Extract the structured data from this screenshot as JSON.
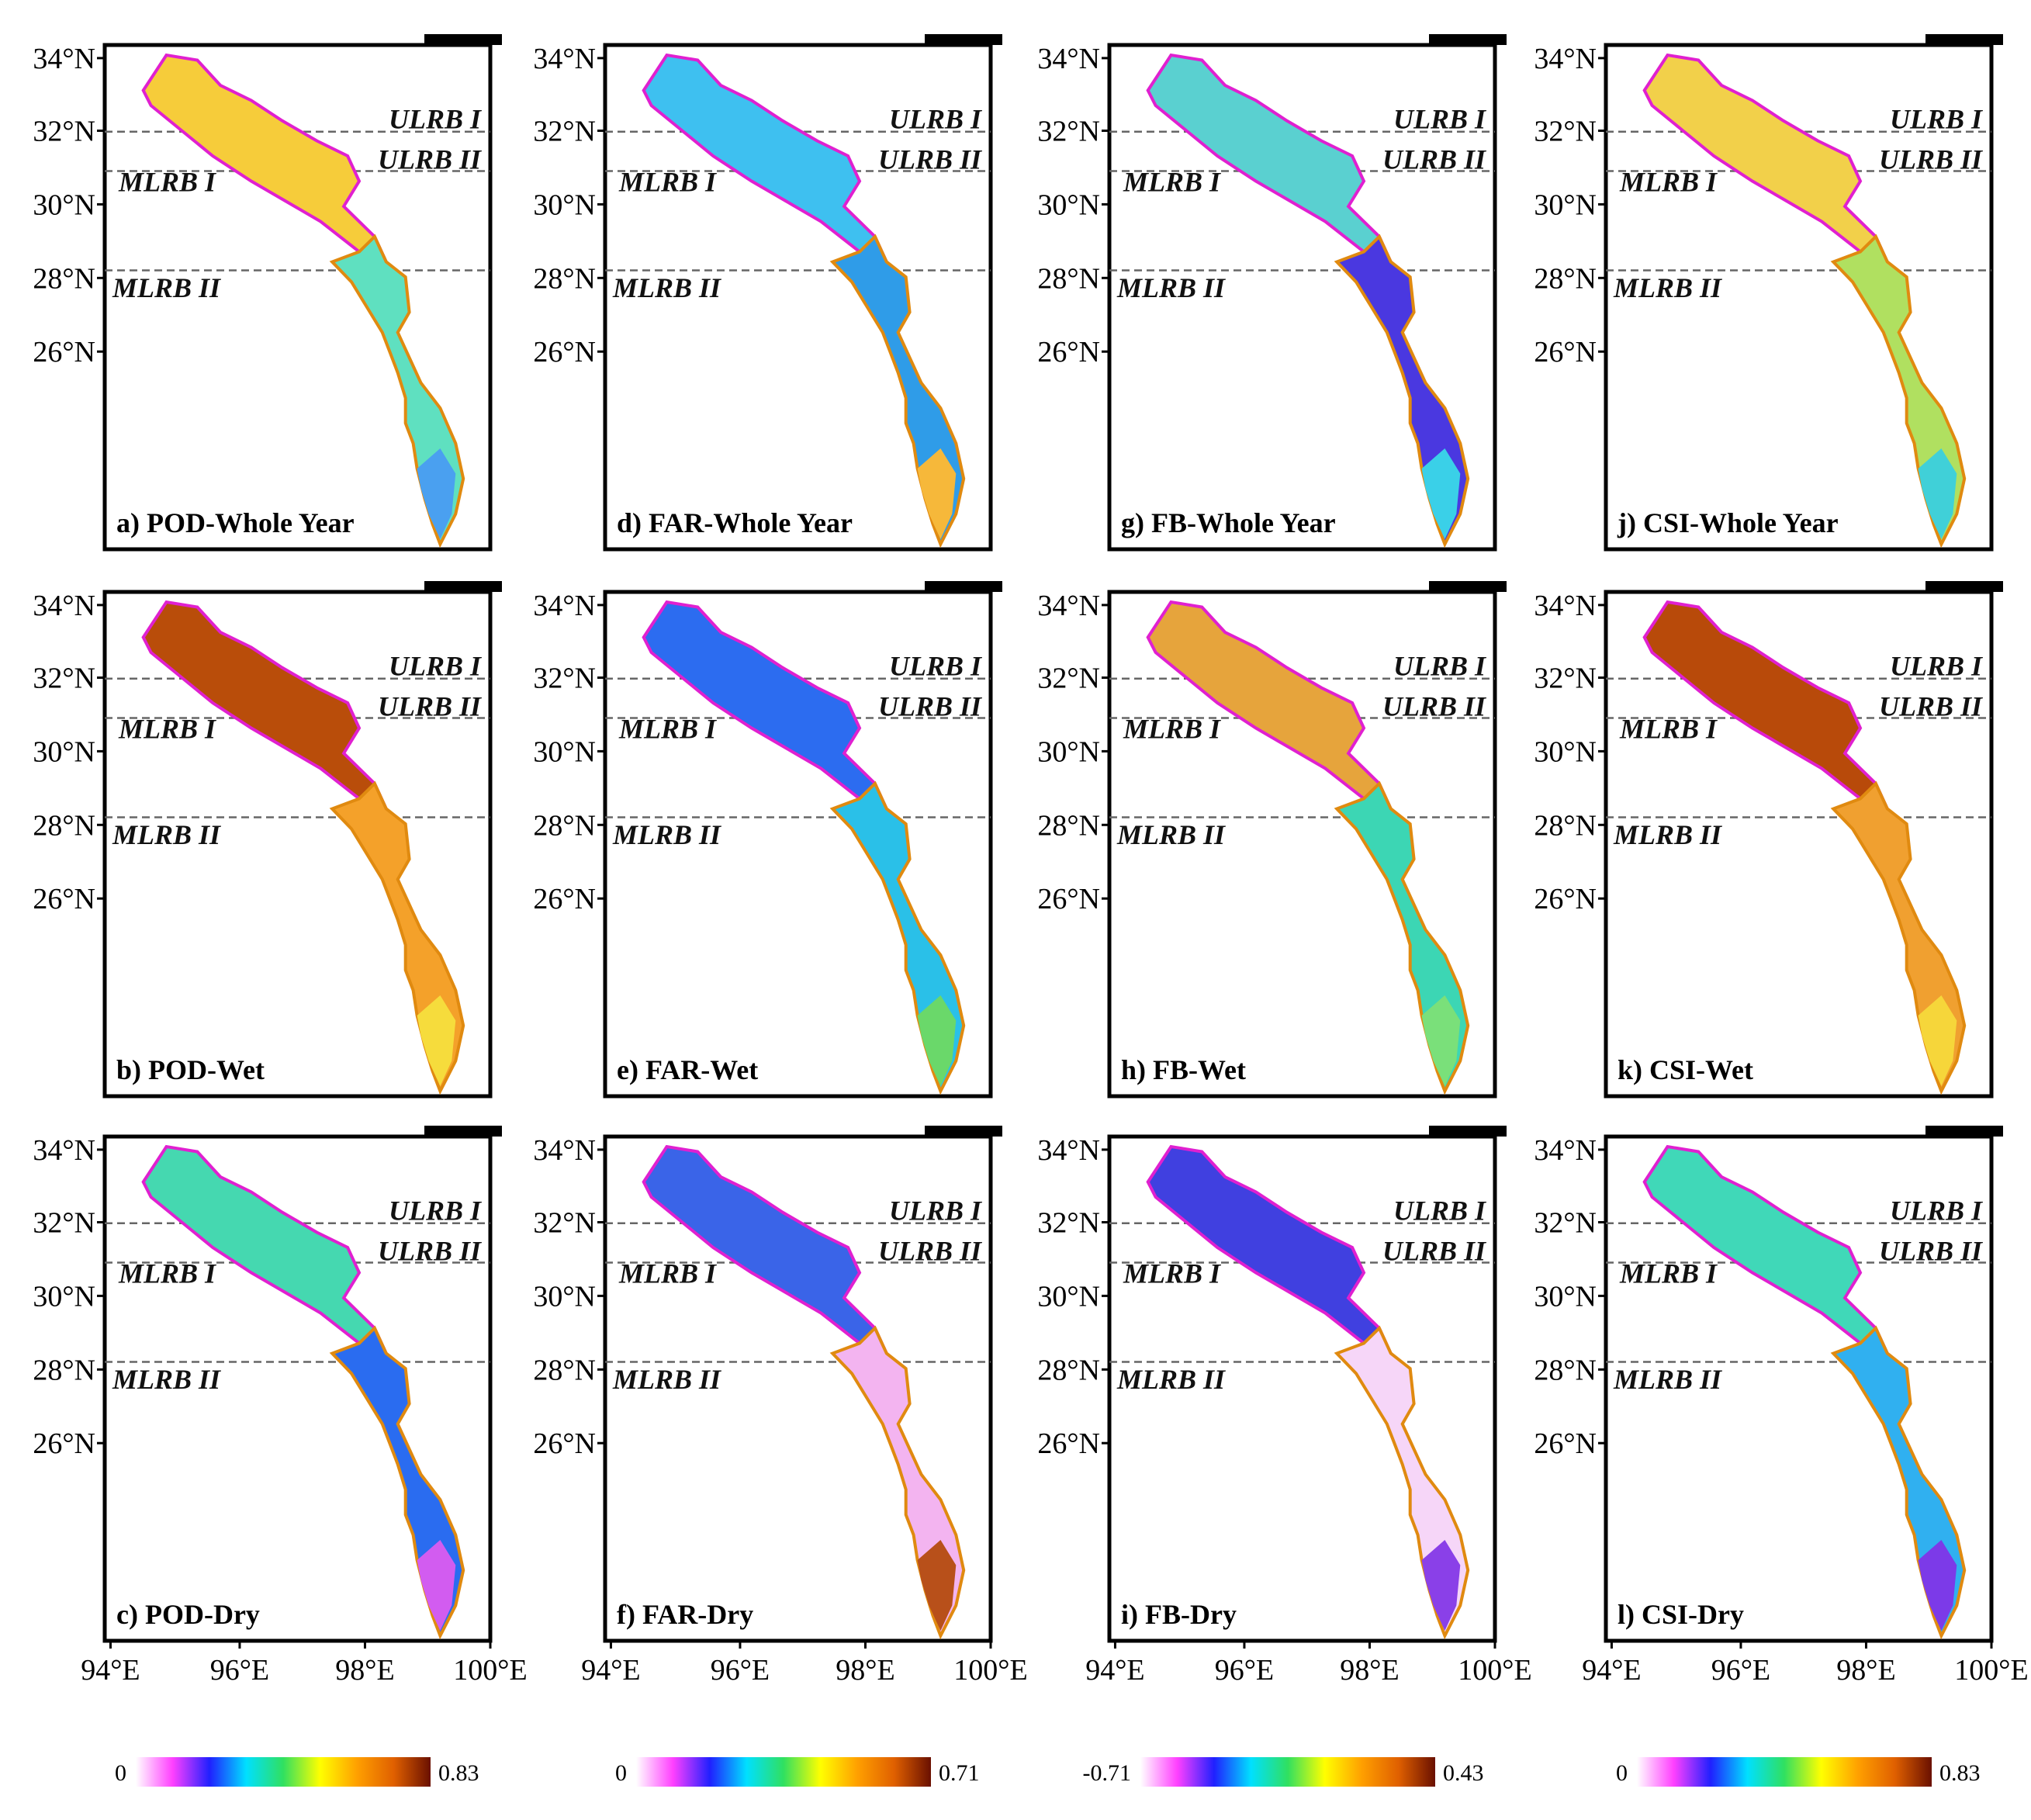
{
  "figure": {
    "lat_ticks": [
      "34°N",
      "32°N",
      "30°N",
      "28°N",
      "26°N"
    ],
    "lon_ticks": [
      "94°E",
      "96°E",
      "98°E",
      "100°E"
    ],
    "region_labels": {
      "ulrb1": "ULRB I",
      "ulrb2": "ULRB II",
      "mlrb1": "MLRB I",
      "mlrb2": "MLRB II"
    },
    "colors": {
      "outline_upper": "#e020d0",
      "outline_lower": "#e08a10",
      "pod_ramp": [
        "#ffffff",
        "#ff40ff",
        "#2020ff",
        "#00e0ff",
        "#30e060",
        "#ffff00",
        "#ffa000",
        "#e06000",
        "#6a1000"
      ],
      "far_ramp": [
        "#ffffff",
        "#ff40ff",
        "#2020ff",
        "#00e0ff",
        "#30e060",
        "#ffff00",
        "#ffa000",
        "#e06000",
        "#6a1000"
      ],
      "fb_ramp": [
        "#ffffff",
        "#ff40ff",
        "#2020ff",
        "#00e0ff",
        "#30e060",
        "#ffff00",
        "#ffa000",
        "#e06000",
        "#6a1000"
      ],
      "csi_ramp": [
        "#ffffff",
        "#ff40ff",
        "#2020ff",
        "#00e0ff",
        "#30e060",
        "#ffff00",
        "#ffa000",
        "#e06000",
        "#6a1000"
      ]
    },
    "panels": [
      {
        "id": "a",
        "title": "a) POD-Whole Year",
        "upper": "#f6cc3a",
        "lower": "#5fe0c0",
        "tip": "#4aa0f0"
      },
      {
        "id": "b",
        "title": "b) POD-Wet",
        "upper": "#b94d0a",
        "lower": "#f4a12a",
        "tip": "#f6dc3c"
      },
      {
        "id": "c",
        "title": "c) POD-Dry",
        "upper": "#45d8b0",
        "lower": "#2a6cf0",
        "tip": "#d25cf0"
      },
      {
        "id": "d",
        "title": "d) FAR-Whole Year",
        "upper": "#3ec0f0",
        "lower": "#2f9ce8",
        "tip": "#f6b83a"
      },
      {
        "id": "e",
        "title": "e) FAR-Wet",
        "upper": "#2c6cf0",
        "lower": "#2ac0e8",
        "tip": "#6ad86a"
      },
      {
        "id": "f",
        "title": "f) FAR-Dry",
        "upper": "#3a64e8",
        "lower": "#f3b4f0",
        "tip": "#b8501a"
      },
      {
        "id": "g",
        "title": "g) FB-Whole Year",
        "upper": "#5ad0d0",
        "lower": "#4a38e0",
        "tip": "#3ad0e8"
      },
      {
        "id": "h",
        "title": "h) FB-Wet",
        "upper": "#e6a43c",
        "lower": "#3cd6b4",
        "tip": "#7ae07a"
      },
      {
        "id": "i",
        "title": "i) FB-Dry",
        "upper": "#4040e0",
        "lower": "#f6d6f8",
        "tip": "#8a40e8"
      },
      {
        "id": "j",
        "title": "j) CSI-Whole Year",
        "upper": "#f2d04a",
        "lower": "#b0e060",
        "tip": "#40d0d8"
      },
      {
        "id": "k",
        "title": "k) CSI-Wet",
        "upper": "#b84a0a",
        "lower": "#f0a030",
        "tip": "#f6d63a"
      },
      {
        "id": "l",
        "title": "l) CSI-Dry",
        "upper": "#40d8b8",
        "lower": "#30b0f0",
        "tip": "#7c3ae8"
      }
    ],
    "colorbars": [
      {
        "id": "pod",
        "min": "0",
        "max": "0.83"
      },
      {
        "id": "far",
        "min": "0",
        "max": "0.71"
      },
      {
        "id": "fb",
        "min": "-0.71",
        "max": "0.43"
      },
      {
        "id": "csi",
        "min": "0",
        "max": "0.83"
      }
    ]
  }
}
